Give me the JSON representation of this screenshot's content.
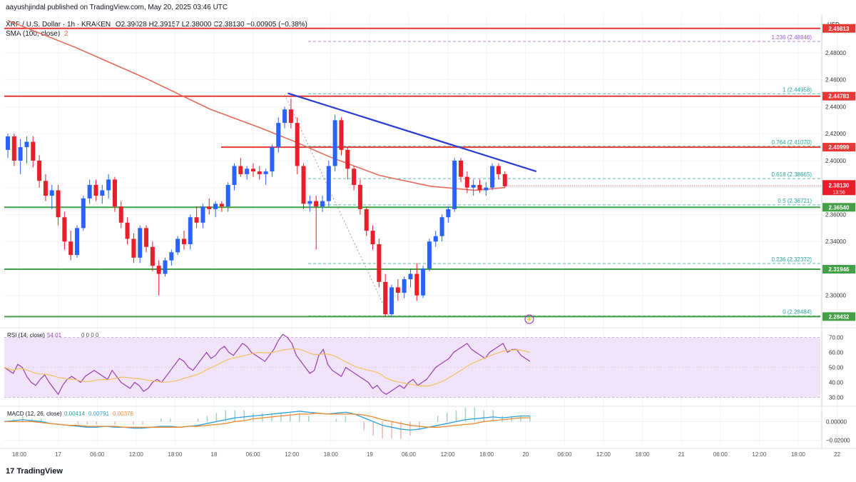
{
  "header": {
    "published": "aayushjindal published on TradingView.com, May 20, 2025 03:46 UTC",
    "symbol": "XRP / U.S. Dollar · 1h · KRAKEN",
    "ohlc": "O2.39028 H2.39157 L2.38000 C2.38130 −0.00905 (−0.38%)",
    "sma_label": "SMA (100, close)",
    "sma_value": "2"
  },
  "colors": {
    "up": "#2962ff",
    "down": "#e91e2b",
    "sma": "#e8695a",
    "resistance": "#e53935",
    "support": "#43a047",
    "trendline": "#2a3bd6",
    "fib": "#26a69a",
    "fib_ext": "#9c5ee0",
    "rsi": "#9b3fb5",
    "rsi_ma": "#f0c060",
    "rsi_band": "#f1e3fa",
    "macd": "#2aa0e0",
    "signal": "#f08a30"
  },
  "footer": {
    "brand": "TradingView"
  },
  "chart_data": [
    {
      "type": "candlestick",
      "title": "XRP / U.S. Dollar · 1h · KRAKEN",
      "currency_label": "USD",
      "ylim": [
        2.2776,
        2.5086
      ],
      "yticks": [
        2.3,
        2.32,
        2.34,
        2.36,
        2.38,
        2.4,
        2.42,
        2.44,
        2.46,
        2.48
      ],
      "xticks": [
        "18:00",
        "17",
        "06:00",
        "12:00",
        "18:00",
        "18",
        "06:00",
        "12:00",
        "18:00",
        "19",
        "06:00",
        "12:00",
        "18:00",
        "20",
        "06:00",
        "12:00",
        "18:00",
        "21",
        "06:00",
        "12:00",
        "18:00",
        "22"
      ],
      "candles": [
        [
          2.408,
          2.42,
          2.402,
          2.418
        ],
        [
          2.418,
          2.42,
          2.396,
          2.4
        ],
        [
          2.4,
          2.416,
          2.39,
          2.41
        ],
        [
          2.41,
          2.418,
          2.398,
          2.414
        ],
        [
          2.414,
          2.418,
          2.395,
          2.4
        ],
        [
          2.4,
          2.404,
          2.38,
          2.385
        ],
        [
          2.385,
          2.39,
          2.37,
          2.374
        ],
        [
          2.374,
          2.382,
          2.364,
          2.378
        ],
        [
          2.378,
          2.382,
          2.352,
          2.358
        ],
        [
          2.358,
          2.362,
          2.334,
          2.34
        ],
        [
          2.34,
          2.348,
          2.326,
          2.33
        ],
        [
          2.33,
          2.352,
          2.328,
          2.35
        ],
        [
          2.35,
          2.374,
          2.348,
          2.372
        ],
        [
          2.372,
          2.386,
          2.368,
          2.382
        ],
        [
          2.382,
          2.386,
          2.37,
          2.374
        ],
        [
          2.374,
          2.382,
          2.368,
          2.378
        ],
        [
          2.378,
          2.39,
          2.372,
          2.386
        ],
        [
          2.386,
          2.388,
          2.362,
          2.366
        ],
        [
          2.366,
          2.37,
          2.35,
          2.354
        ],
        [
          2.354,
          2.358,
          2.338,
          2.342
        ],
        [
          2.342,
          2.346,
          2.324,
          2.328
        ],
        [
          2.328,
          2.352,
          2.324,
          2.35
        ],
        [
          2.35,
          2.352,
          2.332,
          2.336
        ],
        [
          2.336,
          2.34,
          2.318,
          2.322
        ],
        [
          2.322,
          2.326,
          2.3,
          2.316
        ],
        [
          2.316,
          2.328,
          2.314,
          2.326
        ],
        [
          2.326,
          2.334,
          2.322,
          2.332
        ],
        [
          2.332,
          2.344,
          2.33,
          2.342
        ],
        [
          2.342,
          2.348,
          2.334,
          2.338
        ],
        [
          2.338,
          2.36,
          2.334,
          2.358
        ],
        [
          2.358,
          2.366,
          2.35,
          2.354
        ],
        [
          2.354,
          2.368,
          2.35,
          2.366
        ],
        [
          2.366,
          2.372,
          2.36,
          2.364
        ],
        [
          2.364,
          2.37,
          2.358,
          2.368
        ],
        [
          2.368,
          2.37,
          2.362,
          2.366
        ],
        [
          2.366,
          2.384,
          2.362,
          2.382
        ],
        [
          2.382,
          2.398,
          2.378,
          2.396
        ],
        [
          2.396,
          2.402,
          2.388,
          2.39
        ],
        [
          2.39,
          2.396,
          2.386,
          2.394
        ],
        [
          2.394,
          2.398,
          2.388,
          2.392
        ],
        [
          2.392,
          2.396,
          2.386,
          2.39
        ],
        [
          2.39,
          2.394,
          2.382,
          2.392
        ],
        [
          2.392,
          2.412,
          2.388,
          2.41
        ],
        [
          2.41,
          2.432,
          2.406,
          2.428
        ],
        [
          2.428,
          2.44,
          2.424,
          2.438
        ],
        [
          2.438,
          2.446,
          2.424,
          2.428
        ],
        [
          2.428,
          2.432,
          2.39,
          2.396
        ],
        [
          2.396,
          2.398,
          2.364,
          2.368
        ],
        [
          2.368,
          2.374,
          2.362,
          2.37
        ],
        [
          2.37,
          2.374,
          2.334,
          2.366
        ],
        [
          2.366,
          2.374,
          2.362,
          2.37
        ],
        [
          2.37,
          2.4,
          2.366,
          2.396
        ],
        [
          2.396,
          2.434,
          2.392,
          2.43
        ],
        [
          2.43,
          2.432,
          2.404,
          2.408
        ],
        [
          2.408,
          2.41,
          2.386,
          2.394
        ],
        [
          2.394,
          2.396,
          2.378,
          2.382
        ],
        [
          2.382,
          2.386,
          2.36,
          2.364
        ],
        [
          2.364,
          2.366,
          2.344,
          2.348
        ],
        [
          2.348,
          2.352,
          2.334,
          2.338
        ],
        [
          2.338,
          2.342,
          2.306,
          2.31
        ],
        [
          2.31,
          2.316,
          2.284,
          2.286
        ],
        [
          2.286,
          2.308,
          2.284,
          2.306
        ],
        [
          2.306,
          2.312,
          2.296,
          2.302
        ],
        [
          2.302,
          2.314,
          2.298,
          2.312
        ],
        [
          2.312,
          2.32,
          2.306,
          2.316
        ],
        [
          2.316,
          2.324,
          2.296,
          2.3
        ],
        [
          2.3,
          2.322,
          2.298,
          2.32
        ],
        [
          2.32,
          2.342,
          2.318,
          2.34
        ],
        [
          2.34,
          2.348,
          2.336,
          2.344
        ],
        [
          2.344,
          2.36,
          2.34,
          2.358
        ],
        [
          2.358,
          2.366,
          2.354,
          2.364
        ],
        [
          2.364,
          2.402,
          2.362,
          2.4
        ],
        [
          2.4,
          2.402,
          2.384,
          2.388
        ],
        [
          2.388,
          2.392,
          2.376,
          2.38
        ],
        [
          2.38,
          2.386,
          2.374,
          2.382
        ],
        [
          2.382,
          2.386,
          2.376,
          2.378
        ],
        [
          2.378,
          2.384,
          2.374,
          2.38
        ],
        [
          2.38,
          2.398,
          2.378,
          2.396
        ],
        [
          2.396,
          2.398,
          2.386,
          2.39
        ],
        [
          2.39,
          2.392,
          2.38,
          2.381
        ]
      ],
      "sma_points": [
        [
          0,
          2.504
        ],
        [
          20,
          2.484
        ],
        [
          40,
          2.462
        ],
        [
          60,
          2.438
        ],
        [
          75,
          2.424
        ],
        [
          85,
          2.414
        ],
        [
          95,
          2.403
        ],
        [
          110,
          2.389
        ],
        [
          125,
          2.381
        ],
        [
          138,
          2.378
        ],
        [
          147,
          2.38
        ]
      ],
      "horizontal_levels": [
        {
          "price": 2.49813,
          "label": "2.49813",
          "kind": "resistance"
        },
        {
          "price": 2.44783,
          "label": "2.44783",
          "kind": "resistance"
        },
        {
          "price": 2.40999,
          "label": "2.40999",
          "kind": "resistance"
        },
        {
          "price": 2.3654,
          "label": "2.36540",
          "kind": "support"
        },
        {
          "price": 2.31946,
          "label": "2.31946",
          "kind": "support"
        },
        {
          "price": 2.28432,
          "label": "2.28432",
          "kind": "support"
        }
      ],
      "current_price": {
        "price": 2.3813,
        "label": "2.38130",
        "countdown": "13:56"
      },
      "fib_levels": [
        {
          "ratio": "1.236",
          "price": 2.48846,
          "label": "1.236 (2.48846)"
        },
        {
          "ratio": "1",
          "price": 2.44958,
          "label": "1 (2.44958)"
        },
        {
          "ratio": "0.764",
          "price": 2.4107,
          "label": "0.764 (2.41070)"
        },
        {
          "ratio": "0.618",
          "price": 2.38665,
          "label": "0.618 (2.38665)"
        },
        {
          "ratio": "0.5",
          "price": 2.36721,
          "label": "0.5 (2.36721)"
        },
        {
          "ratio": "0.236",
          "price": 2.32372,
          "label": "0.236 (2.32372)"
        },
        {
          "ratio": "0",
          "price": 2.28484,
          "label": "0 (2.28484)"
        }
      ],
      "trendline": {
        "start": [
          44.5,
          2.45
        ],
        "end": [
          84,
          2.392
        ]
      }
    },
    {
      "type": "line",
      "title": "RSI (14, close)",
      "value_label": "54.01",
      "extra_values": "0 0 0 0",
      "ylim": [
        25,
        75
      ],
      "yticks": [
        30.0,
        40.0,
        50.0,
        60.0,
        70.0
      ],
      "band": [
        30,
        70
      ],
      "series": [
        {
          "values": [
            50,
            48,
            46,
            52,
            50,
            44,
            40,
            38,
            42,
            45,
            40,
            36,
            32,
            38,
            42,
            44,
            42,
            40,
            44,
            46,
            48,
            46,
            44,
            42,
            48,
            44,
            40,
            38,
            36,
            40,
            38,
            34,
            36,
            40,
            42,
            40,
            44,
            48,
            52,
            56,
            54,
            50,
            48,
            52,
            56,
            60,
            56,
            58,
            62,
            64,
            60,
            58,
            62,
            66,
            64,
            60,
            58,
            56,
            54,
            58,
            62,
            68,
            72,
            70,
            66,
            58,
            54,
            50,
            46,
            48,
            58,
            62,
            52,
            48,
            46,
            44,
            50,
            48,
            46,
            44,
            42,
            40,
            36,
            38,
            34,
            32,
            34,
            36,
            38,
            36,
            40,
            42,
            38,
            40,
            42,
            46,
            50,
            52,
            54,
            56,
            60,
            62,
            64,
            66,
            62,
            60,
            58,
            56,
            60,
            62,
            64,
            66,
            60,
            62,
            62,
            58,
            56,
            54
          ]
        }
      ]
    },
    {
      "type": "line",
      "title": "MACD (12, 26, close)",
      "values_label": [
        "0.00414",
        "0.00791",
        "0.00378"
      ],
      "ylim": [
        -0.024,
        0.014
      ],
      "yticks": [
        -0.02,
        0.0
      ],
      "series": [
        {
          "name": "",
          "values": [
            0.0,
            0.001,
            0.002,
            0.001,
            0.0,
            -0.002,
            -0.003,
            -0.004,
            -0.005,
            -0.006,
            -0.006,
            -0.005,
            -0.006,
            -0.006,
            -0.007,
            -0.007,
            -0.006,
            -0.005,
            -0.005,
            -0.006,
            -0.005,
            -0.004,
            -0.002,
            0.0,
            0.002,
            0.004,
            0.005,
            0.006,
            0.007,
            0.008,
            0.009,
            0.01,
            0.011,
            0.01,
            0.009,
            0.008,
            0.009,
            0.01,
            0.008,
            0.004,
            0.0,
            -0.004,
            -0.006,
            -0.008,
            -0.009,
            -0.008,
            -0.006,
            -0.004,
            -0.002,
            0.0,
            0.002,
            0.003,
            0.004,
            0.005,
            0.004,
            0.005,
            0.006,
            0.006
          ]
        },
        {
          "name": "",
          "values": [
            0.0,
            0.0,
            0.0,
            0.0,
            -0.001,
            -0.002,
            -0.003,
            -0.004,
            -0.004,
            -0.005,
            -0.005,
            -0.005,
            -0.005,
            -0.006,
            -0.006,
            -0.006,
            -0.006,
            -0.006,
            -0.006,
            -0.006,
            -0.005,
            -0.005,
            -0.004,
            -0.003,
            -0.002,
            0.0,
            0.001,
            0.003,
            0.004,
            0.005,
            0.006,
            0.007,
            0.008,
            0.008,
            0.009,
            0.008,
            0.008,
            0.008,
            0.008,
            0.007,
            0.005,
            0.002,
            0.0,
            -0.002,
            -0.004,
            -0.005,
            -0.006,
            -0.006,
            -0.005,
            -0.004,
            -0.003,
            -0.002,
            0.0,
            0.001,
            0.002,
            0.003,
            0.004,
            0.004
          ]
        }
      ]
    }
  ]
}
